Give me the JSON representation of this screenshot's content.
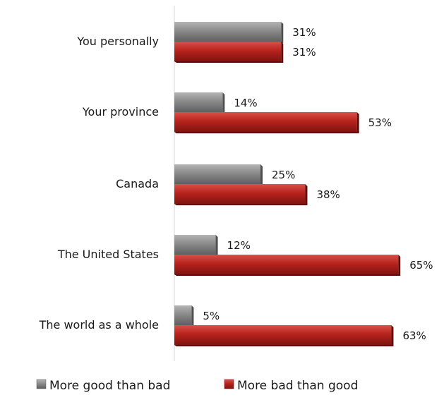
{
  "chart_data": {
    "type": "bar",
    "orientation": "horizontal",
    "title": "",
    "xlabel": "",
    "ylabel": "",
    "categories": [
      "You personally",
      "Your province",
      "Canada",
      "The United States",
      "The world as a whole"
    ],
    "series": [
      {
        "name": "More good than bad",
        "values": [
          31,
          14,
          25,
          12,
          5
        ],
        "labels": [
          "31%",
          "14%",
          "25%",
          "12%",
          "5%"
        ],
        "color": "#7f7f7f"
      },
      {
        "name": "More bad than good",
        "values": [
          31,
          53,
          38,
          65,
          63
        ],
        "labels": [
          "31%",
          "53%",
          "38%",
          "65%",
          "63%"
        ],
        "color": "#c0332b"
      }
    ],
    "xlim": [
      0,
      70
    ],
    "grid": false,
    "value_axis_visible": false,
    "legend_position": "bottom"
  }
}
